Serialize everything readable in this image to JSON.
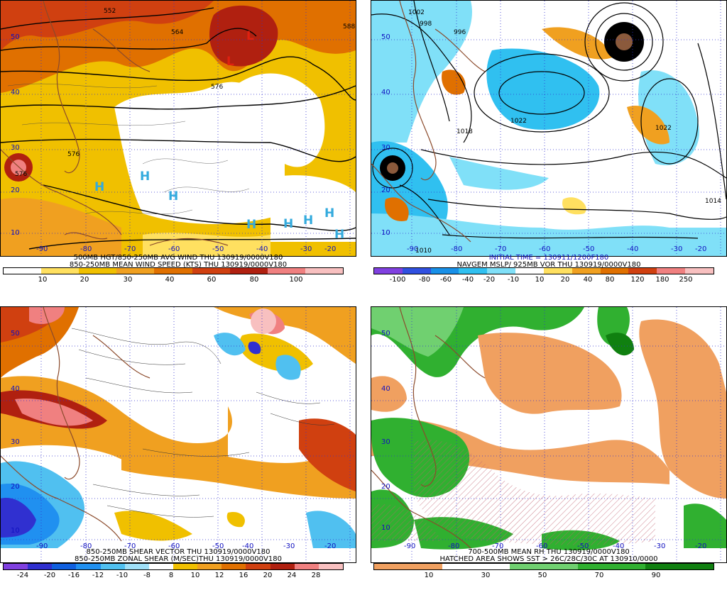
{
  "panels": [
    {
      "title_line1": "500MB HGT/850-250MB AVG WIND THU 130919/0000V180",
      "title_line2": "850-250MB MEAN WIND SPEED (KTS) THU 130919/0000V180",
      "colorbar_colors": [
        "#ffffff",
        "#ffe060",
        "#f0c000",
        "#f0a020",
        "#e07000",
        "#d04010",
        "#b02010",
        "#f08080",
        "#f8c0c0"
      ],
      "colorbar_ticks": [
        "10",
        "20",
        "30",
        "40",
        "60",
        "80",
        "100"
      ],
      "lat_labels": [
        "50",
        "40",
        "30",
        "20",
        "10"
      ],
      "lon_labels": [
        "-90",
        "-80",
        "-70",
        "-60",
        "-50",
        "-40",
        "-30",
        "-20"
      ],
      "contour_labels": [
        "552",
        "564",
        "576",
        "576",
        "576",
        "588"
      ],
      "highs": [
        "H",
        "H",
        "H",
        "H",
        "H",
        "H",
        "H",
        "H"
      ],
      "lows": [
        "L",
        "L"
      ]
    },
    {
      "title_line1": "INITIAL TIME = 130911/1200F180",
      "title_line2": "NAVGEM MSLP/ 925MB VOR THU 130919/0000V180",
      "colorbar_colors": [
        "#8040e0",
        "#3050e0",
        "#1890e8",
        "#30c0f0",
        "#80e0f8",
        "#ffffff",
        "#ffe060",
        "#f0a020",
        "#e07000",
        "#d04010",
        "#f08080",
        "#f8c0c0"
      ],
      "colorbar_ticks": [
        "-100",
        "-80",
        "-60",
        "-40",
        "-20",
        "-10",
        "10",
        "20",
        "40",
        "80",
        "120",
        "180",
        "250"
      ],
      "lat_labels": [
        "50",
        "40",
        "30",
        "20",
        "10"
      ],
      "lon_labels": [
        "-90",
        "-80",
        "-70",
        "-60",
        "-50",
        "-40",
        "-30",
        "-20"
      ],
      "contour_labels": [
        "1002",
        "998",
        "996",
        "1022",
        "1022",
        "1010",
        "1014",
        "1018"
      ]
    },
    {
      "title_line1": "850-250MB SHEAR VECTOR THU 130919/0000V180",
      "title_line2": "850-250MB ZONAL SHEAR (M/SEC)THU 130919/0000V180",
      "colorbar_colors": [
        "#8040e0",
        "#3030d0",
        "#1060e0",
        "#2090f0",
        "#50c0f0",
        "#a0e0f8",
        "#ffffff",
        "#f0c000",
        "#f0a020",
        "#e07000",
        "#d04010",
        "#b02010",
        "#f08080",
        "#f8c0c0"
      ],
      "colorbar_ticks": [
        "-24",
        "-20",
        "-16",
        "-12",
        "-10",
        "-8",
        "8",
        "10",
        "12",
        "16",
        "20",
        "24",
        "28"
      ],
      "lat_labels": [
        "50",
        "40",
        "30",
        "20",
        "10"
      ],
      "lon_labels": [
        "-90",
        "-80",
        "-70",
        "-60",
        "-50",
        "-40",
        "-30",
        "-20"
      ]
    },
    {
      "title_line1": "700-500MB MEAN RH THU 130919/0000V180",
      "title_line2": "HATCHED AREA SHOWS SST > 26C/28C/30C AT 130910/0000",
      "colorbar_colors": [
        "#f0a060",
        "#ffffff",
        "#70d070",
        "#30b030",
        "#108010"
      ],
      "colorbar_ticks": [
        "10",
        "30",
        "50",
        "70",
        "90"
      ],
      "lat_labels": [
        "50",
        "40",
        "30",
        "20",
        "10"
      ],
      "lon_labels": [
        "-90",
        "-80",
        "-70",
        "-60",
        "-50",
        "-40",
        "-30",
        "-20"
      ]
    }
  ]
}
